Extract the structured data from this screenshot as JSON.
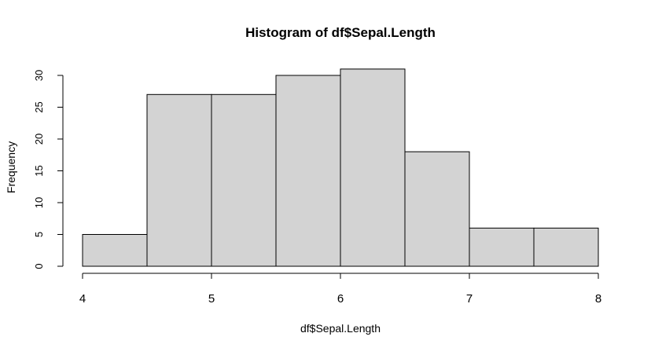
{
  "chart_data": {
    "type": "bar",
    "title": "Histogram of df$Sepal.Length",
    "xlabel": "df$Sepal.Length",
    "ylabel": "Frequency",
    "bins": [
      {
        "start": 4.0,
        "end": 4.5,
        "value": 5
      },
      {
        "start": 4.5,
        "end": 5.0,
        "value": 27
      },
      {
        "start": 5.0,
        "end": 5.5,
        "value": 27
      },
      {
        "start": 5.5,
        "end": 6.0,
        "value": 30
      },
      {
        "start": 6.0,
        "end": 6.5,
        "value": 31
      },
      {
        "start": 6.5,
        "end": 7.0,
        "value": 18
      },
      {
        "start": 7.0,
        "end": 7.5,
        "value": 6
      },
      {
        "start": 7.5,
        "end": 8.0,
        "value": 6
      }
    ],
    "x_ticks": [
      4,
      5,
      6,
      7,
      8
    ],
    "y_ticks": [
      0,
      5,
      10,
      15,
      20,
      25,
      30
    ],
    "xlim": [
      4,
      8
    ],
    "ylim": [
      0,
      31
    ],
    "bar_color": "#d3d3d3",
    "bar_border": "#000000",
    "grid": false
  }
}
